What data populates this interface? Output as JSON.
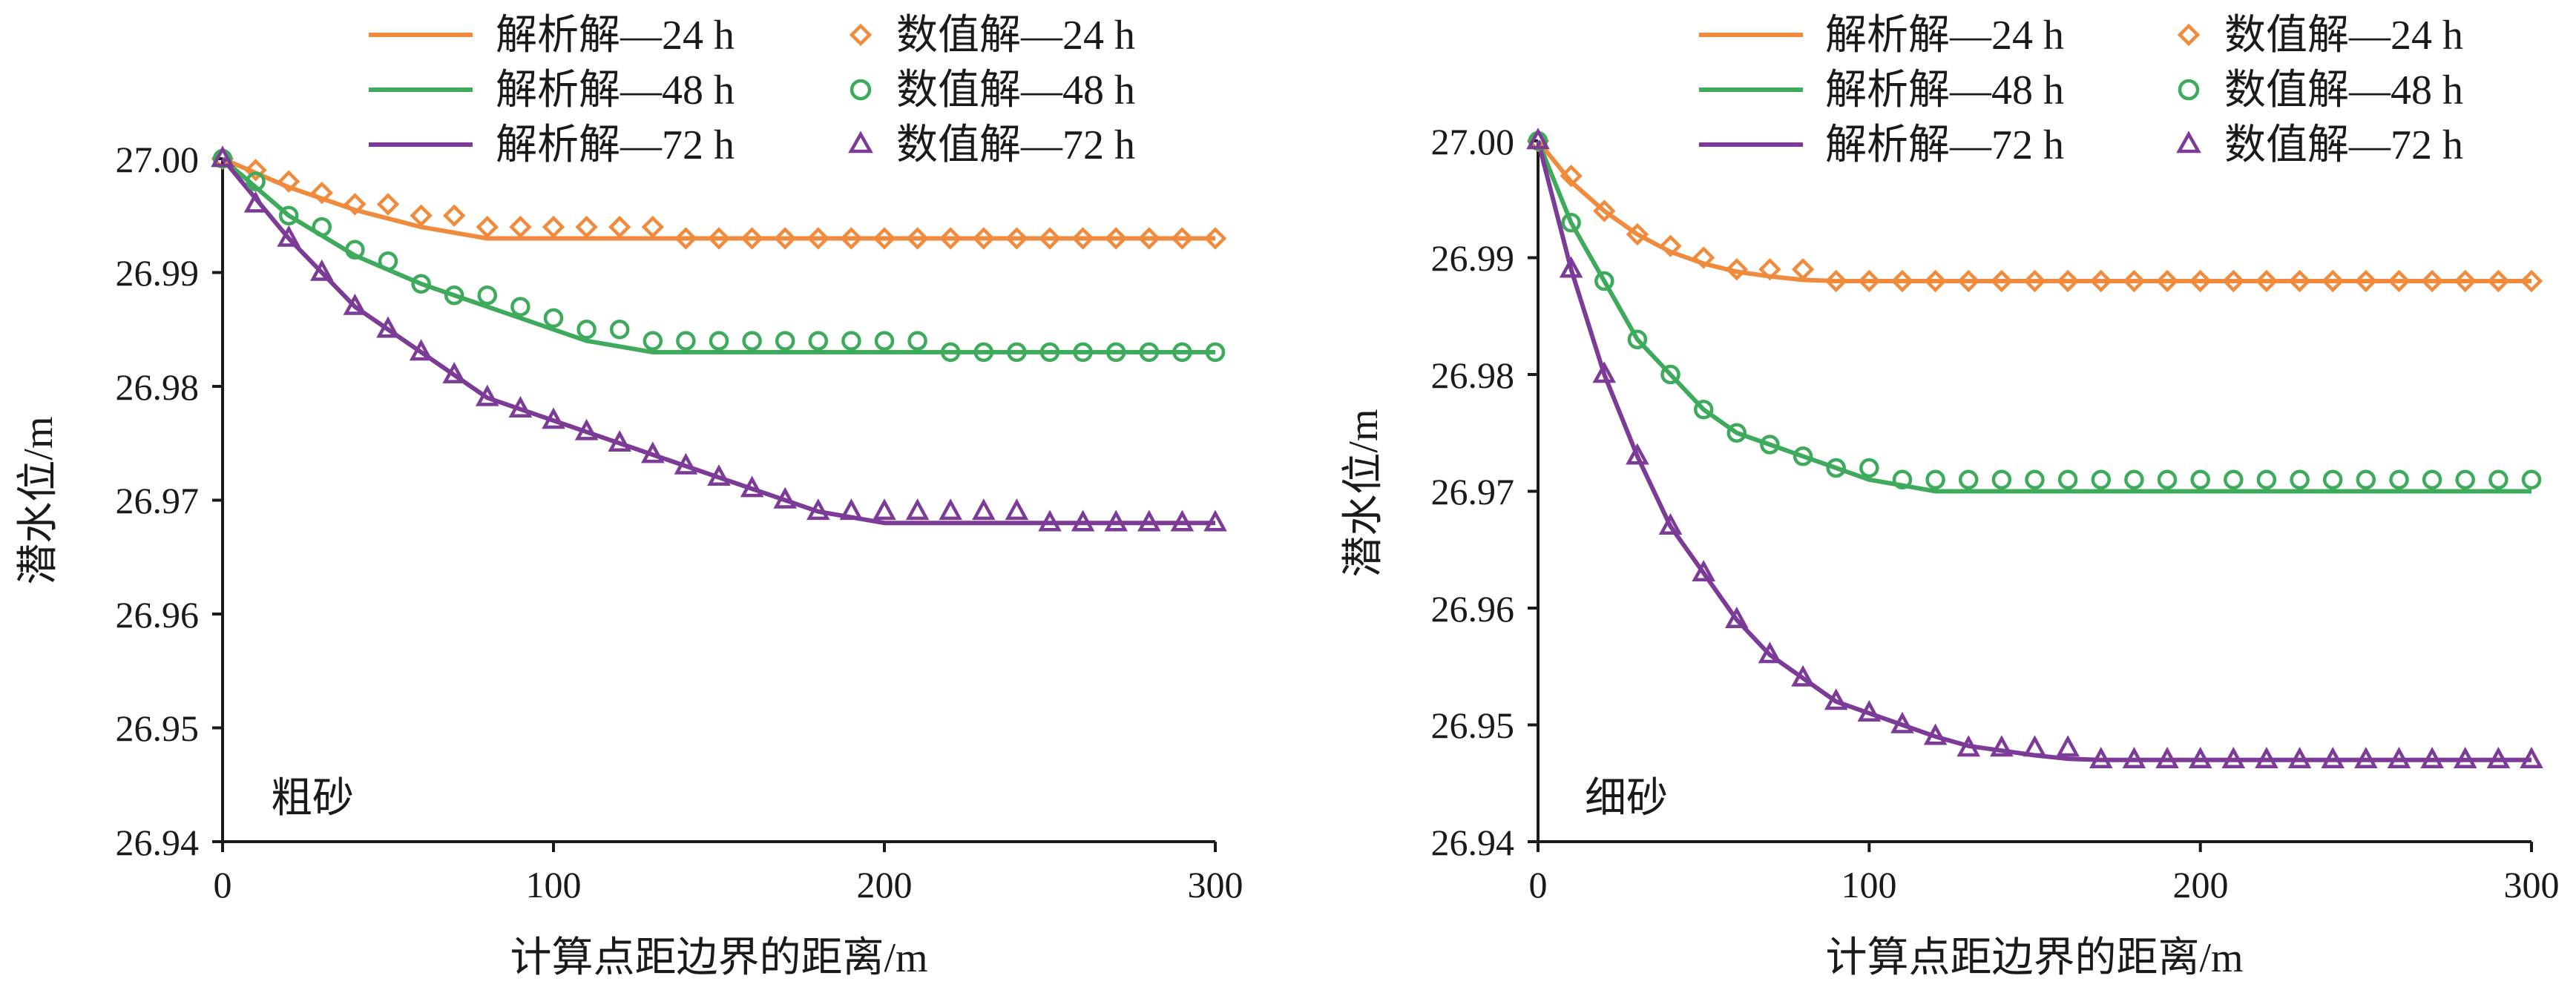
{
  "colors": {
    "h24": "#F08A3C",
    "h48": "#3DAA5C",
    "h72": "#7B3B96",
    "axis": "#1a1a1a"
  },
  "legend": {
    "a24": "解析解—24 h",
    "n24": "数值解—24 h",
    "a48": "解析解—48 h",
    "n48": "数值解—48 h",
    "a72": "解析解—72 h",
    "n72": "数值解—72 h"
  },
  "chart_data": [
    {
      "type": "line",
      "panel_label": "粗砂",
      "xlabel": "计算点距边界的距离/m",
      "ylabel": "潜水位/m",
      "xlim": [
        0,
        300
      ],
      "ylim": [
        26.94,
        27.0
      ],
      "xticks": [
        "0",
        "100",
        "200",
        "300"
      ],
      "yticks": [
        "26.94",
        "26.95",
        "26.96",
        "26.97",
        "26.98",
        "26.99",
        "27.00"
      ],
      "grid": false,
      "legend_position": "top",
      "series": [
        {
          "name": "解析解—24 h",
          "kind": "line",
          "color_key": "h24",
          "x": [
            0,
            20,
            40,
            60,
            80,
            100,
            300
          ],
          "y": [
            27.0,
            26.9975,
            26.9955,
            26.994,
            26.993,
            26.993,
            26.993
          ]
        },
        {
          "name": "解析解—48 h",
          "kind": "line",
          "color_key": "h48",
          "x": [
            0,
            20,
            40,
            60,
            80,
            110,
            130,
            300
          ],
          "y": [
            27.0,
            26.995,
            26.9915,
            26.989,
            26.987,
            26.984,
            26.983,
            26.983
          ]
        },
        {
          "name": "解析解—72 h",
          "kind": "line",
          "color_key": "h72",
          "x": [
            0,
            20,
            40,
            60,
            80,
            110,
            140,
            180,
            200,
            300
          ],
          "y": [
            27.0,
            26.993,
            26.987,
            26.983,
            26.979,
            26.976,
            26.973,
            26.969,
            26.968,
            26.968
          ]
        },
        {
          "name": "数值解—24 h",
          "kind": "marker",
          "marker": "diamond",
          "color_key": "h24",
          "x": [
            0,
            10,
            20,
            30,
            40,
            50,
            60,
            70,
            80,
            90,
            100,
            110,
            120,
            130,
            140,
            150,
            160,
            170,
            180,
            190,
            200,
            210,
            220,
            230,
            240,
            250,
            260,
            270,
            280,
            290,
            300
          ],
          "y": [
            27.0,
            26.999,
            26.998,
            26.997,
            26.996,
            26.996,
            26.995,
            26.995,
            26.994,
            26.994,
            26.994,
            26.994,
            26.994,
            26.994,
            26.993,
            26.993,
            26.993,
            26.993,
            26.993,
            26.993,
            26.993,
            26.993,
            26.993,
            26.993,
            26.993,
            26.993,
            26.993,
            26.993,
            26.993,
            26.993,
            26.993
          ]
        },
        {
          "name": "数值解—48 h",
          "kind": "marker",
          "marker": "circle",
          "color_key": "h48",
          "x": [
            0,
            10,
            20,
            30,
            40,
            50,
            60,
            70,
            80,
            90,
            100,
            110,
            120,
            130,
            140,
            150,
            160,
            170,
            180,
            190,
            200,
            210,
            220,
            230,
            240,
            250,
            260,
            270,
            280,
            290,
            300
          ],
          "y": [
            27.0,
            26.998,
            26.995,
            26.994,
            26.992,
            26.991,
            26.989,
            26.988,
            26.988,
            26.987,
            26.986,
            26.985,
            26.985,
            26.984,
            26.984,
            26.984,
            26.984,
            26.984,
            26.984,
            26.984,
            26.984,
            26.984,
            26.983,
            26.983,
            26.983,
            26.983,
            26.983,
            26.983,
            26.983,
            26.983,
            26.983
          ]
        },
        {
          "name": "数值解—72 h",
          "kind": "marker",
          "marker": "triangle",
          "color_key": "h72",
          "x": [
            0,
            10,
            20,
            30,
            40,
            50,
            60,
            70,
            80,
            90,
            100,
            110,
            120,
            130,
            140,
            150,
            160,
            170,
            180,
            190,
            200,
            210,
            220,
            230,
            240,
            250,
            260,
            270,
            280,
            290,
            300
          ],
          "y": [
            27.0,
            26.996,
            26.993,
            26.99,
            26.987,
            26.985,
            26.983,
            26.981,
            26.979,
            26.978,
            26.977,
            26.976,
            26.975,
            26.974,
            26.973,
            26.972,
            26.971,
            26.97,
            26.969,
            26.969,
            26.969,
            26.969,
            26.969,
            26.969,
            26.969,
            26.968,
            26.968,
            26.968,
            26.968,
            26.968,
            26.968
          ]
        }
      ]
    },
    {
      "type": "line",
      "panel_label": "细砂",
      "xlabel": "计算点距边界的距离/m",
      "ylabel": "潜水位/m",
      "xlim": [
        0,
        300
      ],
      "ylim": [
        26.94,
        27.0
      ],
      "xticks": [
        "0",
        "100",
        "200",
        "300"
      ],
      "yticks": [
        "26.94",
        "26.95",
        "26.96",
        "26.97",
        "26.98",
        "26.99",
        "27.00"
      ],
      "grid": false,
      "legend_position": "top",
      "series": [
        {
          "name": "解析解—24 h",
          "kind": "line",
          "color_key": "h24",
          "x": [
            0,
            10,
            20,
            30,
            40,
            50,
            60,
            70,
            80,
            90,
            300
          ],
          "y": [
            27.0,
            26.9965,
            26.994,
            26.992,
            26.9905,
            26.9895,
            26.9888,
            26.9884,
            26.9881,
            26.988,
            26.988
          ]
        },
        {
          "name": "解析解—48 h",
          "kind": "line",
          "color_key": "h48",
          "x": [
            0,
            10,
            20,
            30,
            40,
            50,
            60,
            70,
            80,
            90,
            100,
            110,
            120,
            300
          ],
          "y": [
            27.0,
            26.993,
            26.988,
            26.983,
            26.98,
            26.977,
            26.975,
            26.974,
            26.973,
            26.972,
            26.971,
            26.9705,
            26.97,
            26.97
          ]
        },
        {
          "name": "解析解—72 h",
          "kind": "line",
          "color_key": "h72",
          "x": [
            0,
            10,
            20,
            30,
            40,
            50,
            60,
            70,
            80,
            90,
            100,
            110,
            120,
            130,
            140,
            150,
            160,
            170,
            300
          ],
          "y": [
            27.0,
            26.989,
            26.98,
            26.973,
            26.967,
            26.963,
            26.959,
            26.956,
            26.954,
            26.952,
            26.951,
            26.95,
            26.949,
            26.9482,
            26.9478,
            26.9474,
            26.9471,
            26.947,
            26.947
          ]
        },
        {
          "name": "数值解—24 h",
          "kind": "marker",
          "marker": "diamond",
          "color_key": "h24",
          "x": [
            0,
            10,
            20,
            30,
            40,
            50,
            60,
            70,
            80,
            90,
            100,
            110,
            120,
            130,
            140,
            150,
            160,
            170,
            180,
            190,
            200,
            210,
            220,
            230,
            240,
            250,
            260,
            270,
            280,
            290,
            300
          ],
          "y": [
            27.0,
            26.997,
            26.994,
            26.992,
            26.991,
            26.99,
            26.989,
            26.989,
            26.989,
            26.988,
            26.988,
            26.988,
            26.988,
            26.988,
            26.988,
            26.988,
            26.988,
            26.988,
            26.988,
            26.988,
            26.988,
            26.988,
            26.988,
            26.988,
            26.988,
            26.988,
            26.988,
            26.988,
            26.988,
            26.988,
            26.988
          ]
        },
        {
          "name": "数值解—48 h",
          "kind": "marker",
          "marker": "circle",
          "color_key": "h48",
          "x": [
            0,
            10,
            20,
            30,
            40,
            50,
            60,
            70,
            80,
            90,
            100,
            110,
            120,
            130,
            140,
            150,
            160,
            170,
            180,
            190,
            200,
            210,
            220,
            230,
            240,
            250,
            260,
            270,
            280,
            290,
            300
          ],
          "y": [
            27.0,
            26.993,
            26.988,
            26.983,
            26.98,
            26.977,
            26.975,
            26.974,
            26.973,
            26.972,
            26.972,
            26.971,
            26.971,
            26.971,
            26.971,
            26.971,
            26.971,
            26.971,
            26.971,
            26.971,
            26.971,
            26.971,
            26.971,
            26.971,
            26.971,
            26.971,
            26.971,
            26.971,
            26.971,
            26.971,
            26.971
          ]
        },
        {
          "name": "数值解—72 h",
          "kind": "marker",
          "marker": "triangle",
          "color_key": "h72",
          "x": [
            0,
            10,
            20,
            30,
            40,
            50,
            60,
            70,
            80,
            90,
            100,
            110,
            120,
            130,
            140,
            150,
            160,
            170,
            180,
            190,
            200,
            210,
            220,
            230,
            240,
            250,
            260,
            270,
            280,
            290,
            300
          ],
          "y": [
            27.0,
            26.989,
            26.98,
            26.973,
            26.967,
            26.963,
            26.959,
            26.956,
            26.954,
            26.952,
            26.951,
            26.95,
            26.949,
            26.948,
            26.948,
            26.948,
            26.948,
            26.947,
            26.947,
            26.947,
            26.947,
            26.947,
            26.947,
            26.947,
            26.947,
            26.947,
            26.947,
            26.947,
            26.947,
            26.947,
            26.947
          ]
        }
      ]
    }
  ]
}
